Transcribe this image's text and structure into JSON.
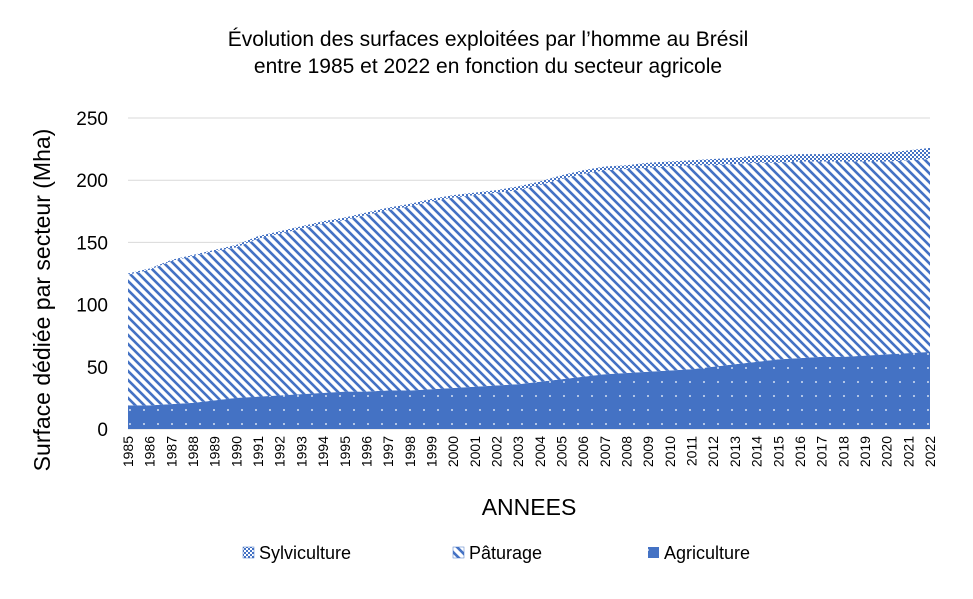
{
  "chart_data": {
    "type": "area",
    "stacked": true,
    "title": [
      "Évolution des surfaces exploitées par l’homme au Brésil",
      "entre 1985 et 2022 en fonction du secteur agricole"
    ],
    "xlabel": "ANNEES",
    "ylabel": "Surface dédiée par secteur (Mha)",
    "ylim": [
      0,
      250
    ],
    "yticks": [
      "0",
      "50",
      "100",
      "150",
      "200",
      "250"
    ],
    "grid": true,
    "legend_position": "bottom",
    "categories": [
      "1985",
      "1986",
      "1987",
      "1988",
      "1989",
      "1990",
      "1991",
      "1992",
      "1993",
      "1994",
      "1995",
      "1996",
      "1997",
      "1998",
      "1999",
      "2000",
      "2001",
      "2002",
      "2003",
      "2004",
      "2005",
      "2006",
      "2007",
      "2008",
      "2009",
      "2010",
      "2011",
      "2012",
      "2013",
      "2014",
      "2015",
      "2016",
      "2017",
      "2018",
      "2019",
      "2020",
      "2021",
      "2022"
    ],
    "series": [
      {
        "name": "Agriculture",
        "color": "#4472c4",
        "pattern": "dots",
        "values": [
          19,
          19,
          20,
          21,
          23,
          25,
          26,
          27,
          28,
          29,
          30,
          30,
          31,
          31,
          32,
          33,
          34,
          35,
          36,
          38,
          40,
          42,
          44,
          45,
          46,
          47,
          48,
          50,
          52,
          54,
          56,
          57,
          58,
          58,
          59,
          60,
          61,
          62
        ]
      },
      {
        "name": "Pâturage",
        "color": "#4472c4",
        "pattern": "diagonal",
        "values": [
          105,
          109,
          115,
          118,
          120,
          121,
          127,
          130,
          133,
          136,
          138,
          142,
          145,
          148,
          151,
          153,
          154,
          155,
          156,
          158,
          161,
          163,
          164,
          164,
          164,
          164,
          164,
          162,
          161,
          160,
          158,
          158,
          157,
          157,
          156,
          155,
          155,
          155
        ]
      },
      {
        "name": "Sylviculture",
        "color": "#4472c4",
        "pattern": "grid",
        "values": [
          1,
          1,
          1,
          1,
          1,
          2,
          2,
          2,
          2,
          2,
          2,
          2,
          2,
          2,
          2,
          2,
          2,
          2,
          3,
          3,
          3,
          3,
          3,
          3,
          4,
          4,
          4,
          5,
          5,
          6,
          6,
          6,
          6,
          7,
          7,
          7,
          8,
          9
        ]
      }
    ]
  }
}
